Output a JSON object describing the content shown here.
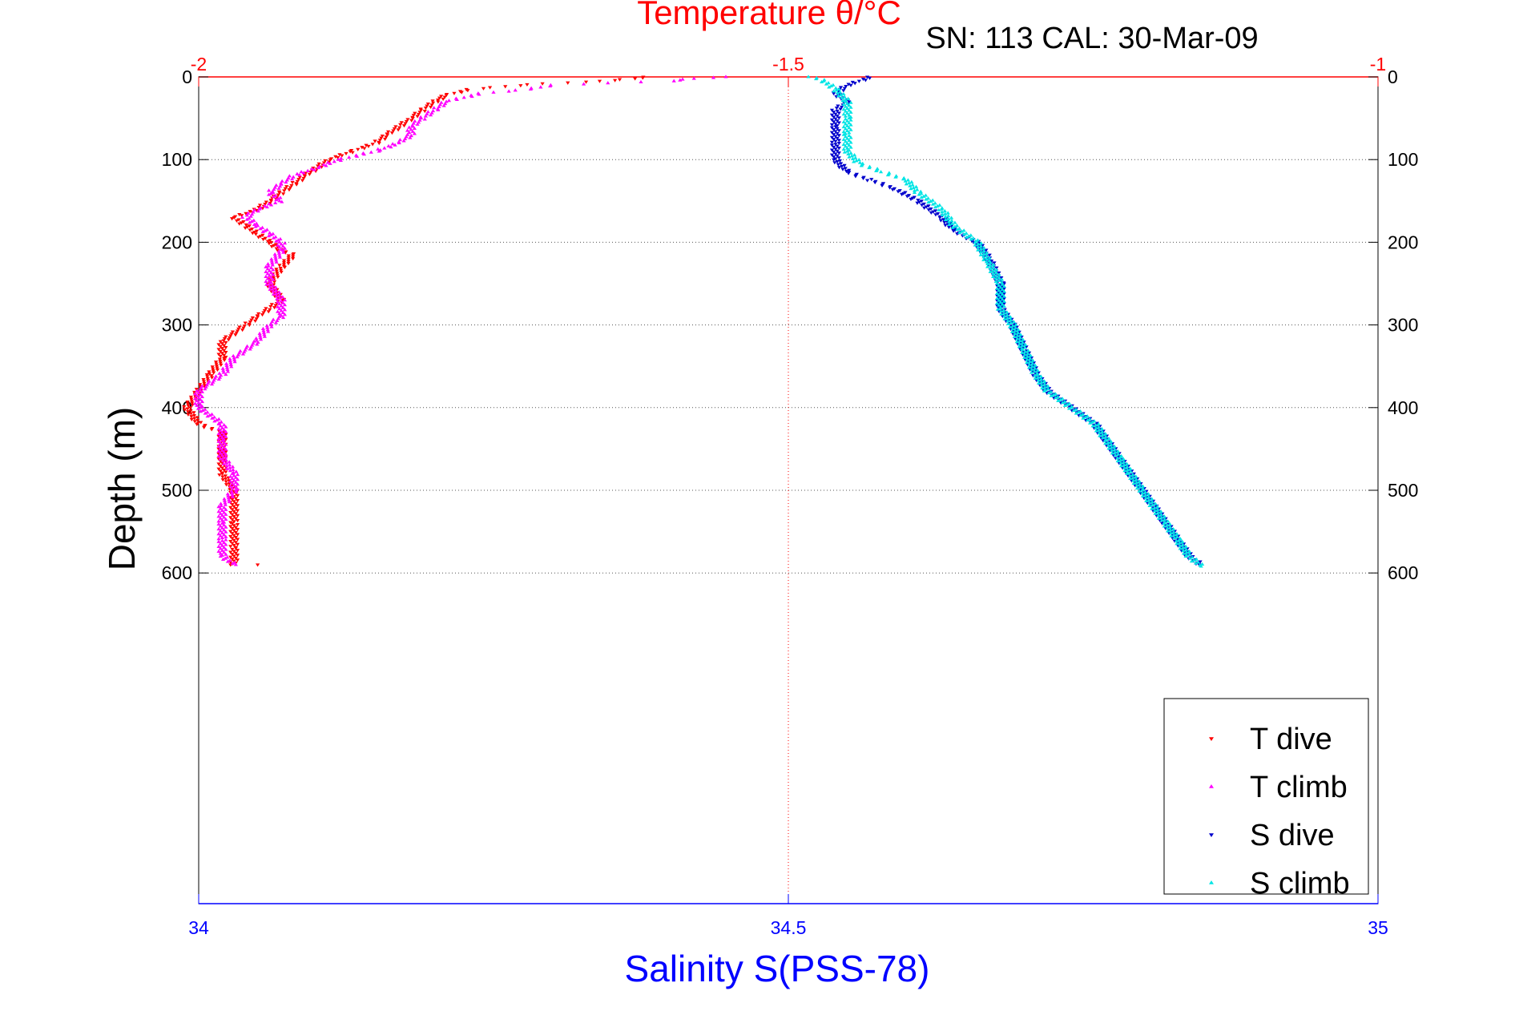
{
  "chart_data": {
    "type": "scatter",
    "title": "Temperature θ/°C",
    "subtitle": "SN: 113  CAL: 30-Mar-09",
    "ylabel": "Depth (m)",
    "xlabel_bottom": "Salinity S(PSS-78)",
    "xlabel_top": "Temperature θ/°C",
    "colors": {
      "temperature_axis": "#ff0000",
      "salinity_axis": "#0000ff",
      "t_dive": "#ff0000",
      "t_climb": "#ff00ff",
      "s_dive": "#0000cc",
      "s_climb": "#00e5e5"
    },
    "y_axis": {
      "range": [
        0,
        1000
      ],
      "reversed": true,
      "ticks": [
        0,
        100,
        200,
        300,
        400,
        500,
        600
      ],
      "tick_labels": [
        "0",
        "100",
        "200",
        "300",
        "400",
        "500",
        "600"
      ]
    },
    "x_bottom": {
      "name": "Salinity",
      "range": [
        34,
        35
      ],
      "ticks": [
        34,
        34.5,
        35
      ],
      "tick_labels": [
        "34",
        "34.5",
        "35"
      ]
    },
    "x_top": {
      "name": "Temperature",
      "range": [
        -2,
        -1
      ],
      "ticks": [
        -2,
        -1.5,
        -1
      ],
      "tick_labels": [
        "-2",
        "-1.5",
        "-1"
      ]
    },
    "grid": "horizontal dotted at depth ticks; vertical dotted at mid-axis",
    "legend": {
      "position": "bottom-right",
      "entries": [
        "T dive",
        "T climb",
        "S dive",
        "S climb"
      ]
    },
    "series": [
      {
        "name": "T dive",
        "axis": "temperature",
        "marker": "down-triangle",
        "points": [
          [
            -1.62,
            0
          ],
          [
            -1.63,
            2
          ],
          [
            -1.65,
            4
          ],
          [
            -1.67,
            6
          ],
          [
            -1.71,
            8
          ],
          [
            -1.77,
            15
          ],
          [
            -1.79,
            22
          ],
          [
            -1.8,
            30
          ],
          [
            -1.81,
            40
          ],
          [
            -1.82,
            50
          ],
          [
            -1.83,
            60
          ],
          [
            -1.84,
            70
          ],
          [
            -1.85,
            80
          ],
          [
            -1.87,
            90
          ],
          [
            -1.89,
            100
          ],
          [
            -1.9,
            110
          ],
          [
            -1.91,
            120
          ],
          [
            -1.92,
            130
          ],
          [
            -1.93,
            140
          ],
          [
            -1.94,
            150
          ],
          [
            -1.95,
            160
          ],
          [
            -1.97,
            170
          ],
          [
            -1.96,
            180
          ],
          [
            -1.95,
            190
          ],
          [
            -1.94,
            200
          ],
          [
            -1.93,
            210
          ],
          [
            -1.92,
            215
          ],
          [
            -1.93,
            230
          ],
          [
            -1.94,
            250
          ],
          [
            -1.93,
            270
          ],
          [
            -1.94,
            280
          ],
          [
            -1.95,
            290
          ],
          [
            -1.96,
            300
          ],
          [
            -1.98,
            320
          ],
          [
            -1.98,
            340
          ],
          [
            -1.99,
            360
          ],
          [
            -2.0,
            380
          ],
          [
            -2.01,
            400
          ],
          [
            -2.0,
            420
          ],
          [
            -1.98,
            430
          ],
          [
            -1.98,
            450
          ],
          [
            -1.98,
            480
          ],
          [
            -1.97,
            500
          ],
          [
            -1.97,
            540
          ],
          [
            -1.97,
            570
          ],
          [
            -1.97,
            590
          ],
          [
            -1.95,
            590
          ]
        ]
      },
      {
        "name": "T climb",
        "axis": "temperature",
        "marker": "up-triangle",
        "points": [
          [
            -1.55,
            0
          ],
          [
            -1.58,
            2
          ],
          [
            -1.6,
            5
          ],
          [
            -1.7,
            10
          ],
          [
            -1.72,
            15
          ],
          [
            -1.76,
            20
          ],
          [
            -1.79,
            30
          ],
          [
            -1.8,
            40
          ],
          [
            -1.81,
            50
          ],
          [
            -1.82,
            60
          ],
          [
            -1.82,
            70
          ],
          [
            -1.83,
            80
          ],
          [
            -1.85,
            90
          ],
          [
            -1.88,
            100
          ],
          [
            -1.9,
            110
          ],
          [
            -1.92,
            120
          ],
          [
            -1.93,
            130
          ],
          [
            -1.94,
            140
          ],
          [
            -1.93,
            150
          ],
          [
            -1.95,
            160
          ],
          [
            -1.96,
            170
          ],
          [
            -1.95,
            180
          ],
          [
            -1.94,
            190
          ],
          [
            -1.93,
            200
          ],
          [
            -1.93,
            210
          ],
          [
            -1.94,
            230
          ],
          [
            -1.94,
            250
          ],
          [
            -1.93,
            270
          ],
          [
            -1.93,
            290
          ],
          [
            -1.94,
            300
          ],
          [
            -1.95,
            320
          ],
          [
            -1.97,
            340
          ],
          [
            -1.98,
            360
          ],
          [
            -2.0,
            380
          ],
          [
            -2.0,
            400
          ],
          [
            -1.98,
            420
          ],
          [
            -1.98,
            440
          ],
          [
            -1.98,
            460
          ],
          [
            -1.97,
            480
          ],
          [
            -1.97,
            500
          ],
          [
            -1.98,
            520
          ],
          [
            -1.98,
            540
          ],
          [
            -1.98,
            560
          ],
          [
            -1.98,
            580
          ],
          [
            -1.97,
            590
          ]
        ]
      },
      {
        "name": "S dive",
        "axis": "salinity",
        "marker": "down-triangle",
        "points": [
          [
            34.57,
            0
          ],
          [
            34.56,
            5
          ],
          [
            34.55,
            10
          ],
          [
            34.54,
            20
          ],
          [
            34.55,
            30
          ],
          [
            34.54,
            40
          ],
          [
            34.54,
            60
          ],
          [
            34.54,
            80
          ],
          [
            34.54,
            100
          ],
          [
            34.55,
            115
          ],
          [
            34.57,
            125
          ],
          [
            34.59,
            135
          ],
          [
            34.61,
            150
          ],
          [
            34.63,
            170
          ],
          [
            34.64,
            185
          ],
          [
            34.66,
            200
          ],
          [
            34.67,
            220
          ],
          [
            34.68,
            250
          ],
          [
            34.68,
            280
          ],
          [
            34.69,
            300
          ],
          [
            34.7,
            330
          ],
          [
            34.71,
            360
          ],
          [
            34.72,
            380
          ],
          [
            34.74,
            400
          ],
          [
            34.76,
            420
          ],
          [
            34.77,
            440
          ],
          [
            34.78,
            460
          ],
          [
            34.79,
            480
          ],
          [
            34.8,
            500
          ],
          [
            34.81,
            520
          ],
          [
            34.82,
            540
          ],
          [
            34.83,
            560
          ],
          [
            34.84,
            580
          ],
          [
            34.85,
            590
          ]
        ]
      },
      {
        "name": "S climb",
        "axis": "salinity",
        "marker": "up-triangle",
        "points": [
          [
            34.52,
            0
          ],
          [
            34.53,
            5
          ],
          [
            34.54,
            15
          ],
          [
            34.55,
            30
          ],
          [
            34.55,
            50
          ],
          [
            34.55,
            70
          ],
          [
            34.55,
            90
          ],
          [
            34.56,
            105
          ],
          [
            34.58,
            115
          ],
          [
            34.6,
            125
          ],
          [
            34.61,
            140
          ],
          [
            34.63,
            160
          ],
          [
            34.64,
            180
          ],
          [
            34.66,
            200
          ],
          [
            34.67,
            225
          ],
          [
            34.68,
            250
          ],
          [
            34.68,
            280
          ],
          [
            34.69,
            300
          ],
          [
            34.7,
            330
          ],
          [
            34.71,
            360
          ],
          [
            34.72,
            380
          ],
          [
            34.74,
            400
          ],
          [
            34.76,
            420
          ],
          [
            34.77,
            440
          ],
          [
            34.78,
            460
          ],
          [
            34.79,
            480
          ],
          [
            34.8,
            500
          ],
          [
            34.81,
            520
          ],
          [
            34.82,
            540
          ],
          [
            34.83,
            560
          ],
          [
            34.84,
            580
          ],
          [
            34.85,
            592
          ]
        ]
      }
    ]
  }
}
